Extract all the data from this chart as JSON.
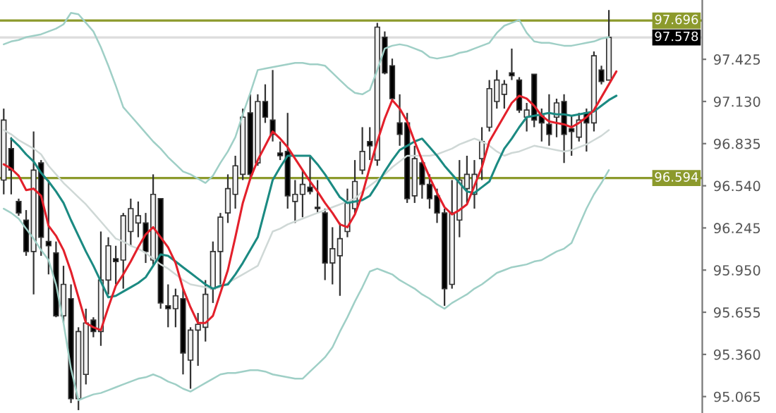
{
  "chart_data": {
    "type": "candlestick",
    "categories": [
      null,
      null,
      null,
      null,
      null,
      null,
      null,
      null,
      null,
      null,
      null,
      null,
      null,
      null,
      null,
      null,
      null,
      null,
      null,
      null,
      null,
      null,
      null,
      null,
      null,
      null,
      null,
      null,
      null,
      null,
      null,
      null,
      null,
      null,
      null,
      null,
      null,
      null,
      null,
      null,
      null,
      null,
      null,
      null,
      null,
      null,
      null,
      null,
      null,
      null,
      null,
      null,
      null,
      null,
      null,
      null,
      null,
      null,
      null,
      null,
      null,
      null,
      null,
      null,
      null,
      null,
      null,
      null,
      null,
      null,
      null,
      null,
      null,
      null,
      null,
      null,
      null,
      null,
      null,
      null,
      null,
      null,
      null,
      null,
      null,
      null,
      null,
      null,
      null,
      null,
      null,
      null,
      null,
      null
    ],
    "ohlc": [
      [
        96.58,
        97.08,
        96.48,
        97.0
      ],
      [
        96.8,
        96.88,
        96.48,
        96.65
      ],
      [
        96.43,
        96.45,
        96.33,
        96.35
      ],
      [
        96.3,
        96.37,
        96.05,
        96.08
      ],
      [
        96.08,
        96.92,
        95.78,
        96.65
      ],
      [
        96.7,
        96.72,
        96.05,
        96.18
      ],
      [
        96.15,
        96.58,
        95.92,
        96.12
      ],
      [
        96.07,
        96.15,
        95.62,
        95.63
      ],
      [
        95.63,
        95.98,
        95.58,
        95.85
      ],
      [
        95.75,
        95.85,
        95.02,
        95.05
      ],
      [
        95.05,
        95.55,
        94.97,
        95.52
      ],
      [
        95.22,
        95.68,
        95.15,
        95.58
      ],
      [
        95.6,
        95.62,
        95.48,
        95.52
      ],
      [
        95.52,
        96.22,
        95.42,
        95.88
      ],
      [
        95.88,
        96.18,
        95.78,
        96.12
      ],
      [
        96.03,
        96.12,
        95.85,
        96.01
      ],
      [
        96.02,
        96.35,
        95.82,
        96.33
      ],
      [
        96.22,
        96.45,
        96.12,
        96.38
      ],
      [
        96.28,
        96.43,
        96.18,
        96.33
      ],
      [
        96.28,
        96.35,
        96.0,
        96.08
      ],
      [
        96.02,
        96.62,
        95.98,
        96.48
      ],
      [
        96.45,
        96.45,
        95.68,
        95.72
      ],
      [
        95.7,
        95.85,
        95.55,
        95.68
      ],
      [
        95.68,
        95.82,
        95.55,
        95.77
      ],
      [
        95.75,
        95.82,
        95.22,
        95.37
      ],
      [
        95.32,
        95.55,
        95.12,
        95.53
      ],
      [
        95.53,
        95.65,
        95.28,
        95.57
      ],
      [
        95.55,
        95.88,
        95.45,
        95.78
      ],
      [
        95.82,
        96.15,
        95.72,
        96.08
      ],
      [
        96.08,
        96.35,
        95.85,
        96.32
      ],
      [
        96.35,
        96.62,
        96.28,
        96.52
      ],
      [
        96.48,
        96.75,
        96.38,
        96.68
      ],
      [
        96.62,
        97.08,
        96.58,
        97.02
      ],
      [
        97.05,
        97.18,
        96.58,
        96.62
      ],
      [
        96.7,
        97.18,
        96.68,
        97.13
      ],
      [
        97.13,
        97.25,
        96.98,
        97.02
      ],
      [
        97.0,
        97.35,
        96.85,
        96.9
      ],
      [
        96.77,
        96.85,
        96.72,
        96.75
      ],
      [
        96.78,
        97.05,
        96.38,
        96.47
      ],
      [
        96.43,
        96.58,
        96.28,
        96.48
      ],
      [
        96.48,
        96.65,
        96.32,
        96.55
      ],
      [
        96.53,
        96.75,
        96.48,
        96.5
      ],
      [
        96.39,
        96.58,
        96.35,
        96.38
      ],
      [
        96.35,
        96.38,
        95.88,
        96.0
      ],
      [
        96.0,
        96.25,
        95.85,
        96.1
      ],
      [
        96.05,
        96.28,
        95.77,
        96.17
      ],
      [
        96.22,
        96.52,
        96.18,
        96.42
      ],
      [
        96.38,
        96.72,
        96.35,
        96.57
      ],
      [
        96.65,
        96.95,
        96.62,
        96.78
      ],
      [
        96.85,
        96.95,
        96.72,
        96.82
      ],
      [
        96.72,
        97.68,
        96.68,
        97.65
      ],
      [
        97.58,
        97.62,
        97.32,
        97.33
      ],
      [
        97.38,
        97.43,
        97.13,
        97.15
      ],
      [
        96.98,
        97.18,
        96.82,
        96.9
      ],
      [
        96.98,
        97.05,
        96.42,
        96.45
      ],
      [
        96.47,
        96.82,
        96.42,
        96.73
      ],
      [
        96.7,
        96.72,
        96.45,
        96.55
      ],
      [
        96.55,
        96.62,
        96.38,
        96.45
      ],
      [
        96.47,
        96.52,
        96.28,
        96.35
      ],
      [
        96.35,
        96.38,
        95.7,
        95.82
      ],
      [
        95.85,
        96.58,
        95.82,
        96.35
      ],
      [
        96.3,
        96.72,
        96.18,
        96.58
      ],
      [
        96.52,
        96.75,
        96.42,
        96.62
      ],
      [
        96.48,
        96.72,
        96.38,
        96.62
      ],
      [
        96.73,
        96.95,
        96.58,
        96.85
      ],
      [
        96.95,
        97.28,
        96.92,
        97.22
      ],
      [
        97.13,
        97.35,
        97.08,
        97.28
      ],
      [
        97.18,
        97.28,
        97.08,
        97.25
      ],
      [
        97.33,
        97.5,
        97.28,
        97.31
      ],
      [
        97.28,
        97.3,
        97.05,
        97.07
      ],
      [
        97.02,
        97.12,
        96.92,
        97.07
      ],
      [
        97.32,
        97.32,
        96.95,
        97.0
      ],
      [
        97.03,
        97.08,
        96.85,
        96.98
      ],
      [
        96.97,
        97.18,
        96.82,
        96.9
      ],
      [
        97.02,
        97.15,
        96.88,
        97.12
      ],
      [
        97.13,
        97.18,
        96.7,
        96.9
      ],
      [
        96.94,
        97.03,
        96.75,
        96.92
      ],
      [
        96.88,
        97.05,
        96.85,
        97.0
      ],
      [
        97.05,
        97.08,
        96.78,
        96.98
      ],
      [
        96.98,
        97.48,
        96.92,
        97.45
      ],
      [
        97.35,
        97.38,
        97.25,
        97.27
      ],
      [
        97.28,
        97.77,
        97.28,
        97.578
      ],
      null,
      null,
      null,
      null,
      null,
      null,
      null,
      null,
      null,
      null,
      null,
      null
    ],
    "series": [
      {
        "type": "line",
        "color": "#9fcfc6",
        "values": [
          97.53,
          97.55,
          97.56,
          97.58,
          97.59,
          97.6,
          97.62,
          97.64,
          97.67,
          97.75,
          97.74,
          97.68,
          97.62,
          97.51,
          97.38,
          97.24,
          97.09,
          97.03,
          96.97,
          96.91,
          96.85,
          96.8,
          96.74,
          96.69,
          96.64,
          96.62,
          96.59,
          96.56,
          96.61,
          96.7,
          96.78,
          96.88,
          97.04,
          97.19,
          97.35,
          97.36,
          97.37,
          97.38,
          97.39,
          97.4,
          97.4,
          97.39,
          97.39,
          97.38,
          97.33,
          97.28,
          97.23,
          97.19,
          97.18,
          97.21,
          97.35,
          97.5,
          97.52,
          97.53,
          97.52,
          97.5,
          97.48,
          97.44,
          97.43,
          97.44,
          97.45,
          97.47,
          97.48,
          97.5,
          97.52,
          97.54,
          97.61,
          97.66,
          97.68,
          97.7,
          97.61,
          97.55,
          97.54,
          97.54,
          97.53,
          97.52,
          97.52,
          97.53,
          97.54,
          97.55,
          97.57,
          97.58,
          null,
          null,
          null,
          null,
          null,
          null,
          null,
          null,
          null,
          null,
          null,
          null
        ]
      },
      {
        "type": "line",
        "color": "#9fcfc6",
        "values": [
          96.38,
          96.35,
          96.31,
          96.24,
          96.17,
          96.09,
          96.02,
          95.85,
          95.58,
          95.26,
          95.04,
          95.06,
          95.08,
          95.09,
          95.11,
          95.13,
          95.15,
          95.17,
          95.19,
          95.2,
          95.22,
          95.2,
          95.17,
          95.15,
          95.12,
          95.1,
          95.13,
          95.16,
          95.19,
          95.22,
          95.23,
          95.23,
          95.24,
          95.25,
          95.25,
          95.24,
          95.22,
          95.21,
          95.2,
          95.19,
          95.19,
          95.24,
          95.29,
          95.34,
          95.41,
          95.52,
          95.62,
          95.73,
          95.83,
          95.94,
          95.96,
          95.94,
          95.92,
          95.88,
          95.85,
          95.82,
          95.78,
          95.75,
          95.71,
          95.68,
          95.72,
          95.75,
          95.78,
          95.82,
          95.85,
          95.89,
          95.93,
          95.95,
          95.97,
          95.98,
          95.99,
          96.01,
          96.02,
          96.05,
          96.08,
          96.1,
          96.14,
          96.26,
          96.38,
          96.48,
          96.56,
          96.65,
          null,
          null,
          null,
          null,
          null,
          null,
          null,
          null,
          null,
          null,
          null,
          null
        ]
      },
      {
        "type": "line",
        "color": "#cfd8d6",
        "values": [
          96.93,
          96.9,
          96.86,
          96.83,
          96.8,
          96.76,
          96.68,
          96.62,
          96.56,
          96.51,
          96.46,
          96.41,
          96.35,
          96.29,
          96.23,
          96.17,
          96.15,
          96.12,
          96.1,
          96.07,
          96.03,
          95.99,
          95.96,
          95.92,
          95.88,
          95.85,
          95.84,
          95.83,
          95.82,
          95.83,
          95.86,
          95.89,
          95.92,
          95.95,
          95.98,
          96.1,
          96.22,
          96.24,
          96.27,
          96.29,
          96.31,
          96.33,
          96.35,
          96.37,
          96.39,
          96.41,
          96.43,
          96.45,
          96.5,
          96.54,
          96.58,
          96.62,
          96.67,
          96.71,
          96.75,
          96.75,
          96.75,
          96.75,
          96.76,
          96.78,
          96.8,
          96.83,
          96.85,
          96.87,
          96.85,
          96.82,
          96.78,
          96.75,
          96.77,
          96.78,
          96.8,
          96.82,
          96.81,
          96.8,
          96.79,
          96.78,
          96.79,
          96.81,
          96.83,
          96.86,
          96.89,
          96.93,
          null,
          null,
          null,
          null,
          null,
          null,
          null,
          null,
          null,
          null,
          null,
          null
        ]
      },
      {
        "type": "line",
        "color": "#1b8a82",
        "values": [
          null,
          96.87,
          96.82,
          96.76,
          96.71,
          96.63,
          96.57,
          96.5,
          96.42,
          96.3,
          96.19,
          96.08,
          95.98,
          95.87,
          95.76,
          95.77,
          95.8,
          95.83,
          95.86,
          95.9,
          95.98,
          96.06,
          96.05,
          96.01,
          95.97,
          95.93,
          95.89,
          95.85,
          95.82,
          95.84,
          95.85,
          95.92,
          96.0,
          96.09,
          96.18,
          96.38,
          96.58,
          96.67,
          96.75,
          96.75,
          96.75,
          96.75,
          96.69,
          96.62,
          96.54,
          96.46,
          96.42,
          96.43,
          96.44,
          96.47,
          96.55,
          96.64,
          96.72,
          96.79,
          96.82,
          96.85,
          96.87,
          96.81,
          96.75,
          96.68,
          96.62,
          96.56,
          96.5,
          96.49,
          96.53,
          96.57,
          96.69,
          96.8,
          96.87,
          96.95,
          97.02,
          97.03,
          97.04,
          97.05,
          97.04,
          97.04,
          97.03,
          97.04,
          97.05,
          97.06,
          97.1,
          97.14,
          97.17,
          null,
          null,
          null,
          null,
          null,
          null,
          null,
          null,
          null,
          null,
          null
        ]
      },
      {
        "type": "line",
        "color": "#e3202b",
        "values": [
          96.69,
          96.66,
          96.61,
          96.51,
          96.52,
          96.47,
          96.26,
          96.19,
          96.09,
          95.94,
          95.76,
          95.58,
          95.55,
          95.53,
          95.69,
          95.84,
          95.92,
          96.01,
          96.11,
          96.2,
          96.25,
          96.18,
          96.11,
          96.0,
          95.82,
          95.69,
          95.58,
          95.58,
          95.63,
          95.79,
          95.95,
          96.18,
          96.42,
          96.59,
          96.72,
          96.82,
          96.92,
          96.87,
          96.81,
          96.73,
          96.65,
          96.57,
          96.5,
          96.42,
          96.35,
          96.27,
          96.25,
          96.34,
          96.48,
          96.67,
          96.85,
          97.01,
          97.14,
          97.08,
          96.99,
          96.85,
          96.72,
          96.6,
          96.49,
          96.39,
          96.34,
          96.37,
          96.41,
          96.54,
          96.67,
          96.85,
          96.94,
          97.03,
          97.12,
          97.17,
          97.15,
          97.1,
          97.03,
          96.99,
          96.98,
          96.97,
          96.95,
          96.98,
          97.02,
          97.07,
          97.16,
          97.25,
          97.34,
          null,
          null,
          null,
          null,
          null,
          null,
          null,
          null,
          null,
          null,
          null
        ]
      }
    ],
    "ylim": [
      94.95,
      97.84
    ],
    "yticks": [
      95.065,
      {
        "value": 95.36,
        "label": "95.360"
      },
      95.655,
      {
        "value": 95.95,
        "label": "95.950"
      },
      96.245,
      {
        "value": 96.54,
        "label": "96.540"
      },
      96.835,
      {
        "value": 97.13,
        "label": "97.130"
      },
      97.425
    ],
    "ref_lines": [
      {
        "axis": "y",
        "value": 97.696,
        "label": "97.696",
        "color": "#8c9a2c"
      },
      {
        "axis": "y",
        "value": 97.578,
        "label": "97.578",
        "color": "#dddddd"
      },
      {
        "axis": "y",
        "value": 96.594,
        "label": "96.594",
        "color": "#8c9a2c"
      }
    ],
    "tick_labels": "y",
    "grid": false
  }
}
